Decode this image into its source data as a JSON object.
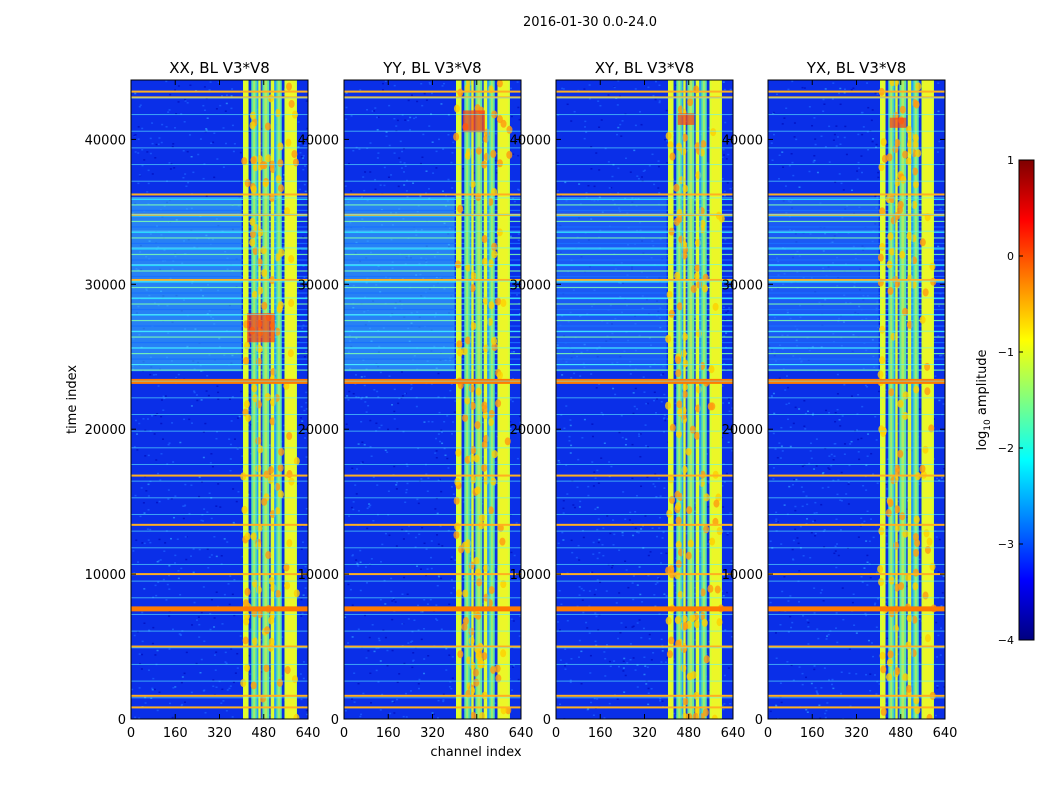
{
  "figure_title": "2016-01-30 0.0-24.0",
  "chart_data": [
    {
      "type": "heatmap",
      "title": "XX, BL V3*V8",
      "xlabel": "",
      "ylabel": "time index",
      "xlim": [
        0,
        640
      ],
      "ylim": [
        0,
        44100
      ],
      "xticks": [
        "0",
        "160",
        "320",
        "480",
        "640"
      ],
      "yticks": [
        "0",
        "10000",
        "20000",
        "30000",
        "40000"
      ],
      "rfi_channel_bands": [
        [
          405,
          425
        ],
        [
          435,
          455
        ],
        [
          460,
          468
        ],
        [
          475,
          500
        ],
        [
          505,
          518
        ],
        [
          525,
          545
        ],
        [
          555,
          600
        ]
      ],
      "rfi_time_rows": [
        800,
        1600,
        5000,
        7600,
        10000,
        13400,
        16800,
        23300,
        30300,
        34800,
        36200,
        42900,
        43300
      ],
      "strong_rows": [
        7600,
        23300
      ],
      "noisy_time_band": [
        24000,
        36000
      ],
      "peak_region": {
        "channel": [
          420,
          520
        ],
        "time": [
          26000,
          28000
        ]
      }
    },
    {
      "type": "heatmap",
      "title": "YY, BL V3*V8",
      "xlabel": "channel index",
      "ylabel": "",
      "xlim": [
        0,
        640
      ],
      "ylim": [
        0,
        44100
      ],
      "xticks": [
        "0",
        "160",
        "320",
        "480",
        "640"
      ],
      "yticks": [
        "0",
        "10000",
        "20000",
        "30000",
        "40000"
      ],
      "rfi_channel_bands": [
        [
          405,
          425
        ],
        [
          435,
          455
        ],
        [
          460,
          468
        ],
        [
          475,
          500
        ],
        [
          505,
          518
        ],
        [
          525,
          545
        ],
        [
          555,
          600
        ]
      ],
      "rfi_time_rows": [
        800,
        1600,
        5000,
        7600,
        10000,
        13400,
        16800,
        23300,
        30300,
        34800,
        36200,
        42900,
        43300
      ],
      "strong_rows": [
        7600,
        23300
      ],
      "noisy_time_band": [
        24000,
        36000
      ],
      "peak_region": {
        "channel": [
          430,
          510
        ],
        "time": [
          40500,
          42000
        ]
      }
    },
    {
      "type": "heatmap",
      "title": "XY, BL V3*V8",
      "xlabel": "",
      "ylabel": "",
      "xlim": [
        0,
        640
      ],
      "ylim": [
        0,
        44100
      ],
      "xticks": [
        "0",
        "160",
        "320",
        "480",
        "640"
      ],
      "yticks": [
        "0",
        "10000",
        "20000",
        "30000",
        "40000"
      ],
      "rfi_channel_bands": [
        [
          405,
          425
        ],
        [
          435,
          455
        ],
        [
          460,
          468
        ],
        [
          475,
          500
        ],
        [
          505,
          518
        ],
        [
          525,
          545
        ],
        [
          555,
          600
        ]
      ],
      "rfi_time_rows": [
        800,
        1600,
        5000,
        7600,
        10000,
        13400,
        16800,
        23300,
        30300,
        34800,
        36200,
        42900,
        43300
      ],
      "strong_rows": [
        7600,
        23300
      ],
      "noisy_time_band": [
        24000,
        36000
      ],
      "peak_region": {
        "channel": [
          440,
          500
        ],
        "time": [
          41000,
          41800
        ]
      }
    },
    {
      "type": "heatmap",
      "title": "YX, BL V3*V8",
      "xlabel": "",
      "ylabel": "",
      "xlim": [
        0,
        640
      ],
      "ylim": [
        0,
        44100
      ],
      "xticks": [
        "0",
        "160",
        "320",
        "480",
        "640"
      ],
      "yticks": [
        "0",
        "10000",
        "20000",
        "30000",
        "40000"
      ],
      "rfi_channel_bands": [
        [
          405,
          425
        ],
        [
          435,
          455
        ],
        [
          460,
          468
        ],
        [
          475,
          500
        ],
        [
          505,
          518
        ],
        [
          525,
          545
        ],
        [
          555,
          600
        ]
      ],
      "rfi_time_rows": [
        800,
        1600,
        5000,
        7600,
        10000,
        13400,
        16800,
        23300,
        30300,
        34800,
        36200,
        42900,
        43300
      ],
      "strong_rows": [
        7600,
        23300
      ],
      "noisy_time_band": [
        24000,
        36000
      ],
      "peak_region": {
        "channel": [
          440,
          500
        ],
        "time": [
          40800,
          41500
        ]
      }
    }
  ],
  "colorbar": {
    "label_prefix": "log",
    "label_sub": "10",
    "label_suffix": " amplitude",
    "range": [
      -4,
      1
    ],
    "ticks": [
      "1",
      "0",
      "−1",
      "−2",
      "−3",
      "−4"
    ],
    "colormap": "jet",
    "stops": [
      "#00007f",
      "#0000ff",
      "#0080ff",
      "#00ffff",
      "#80ff80",
      "#ffff00",
      "#ff8000",
      "#ff0000",
      "#7f0000"
    ]
  }
}
